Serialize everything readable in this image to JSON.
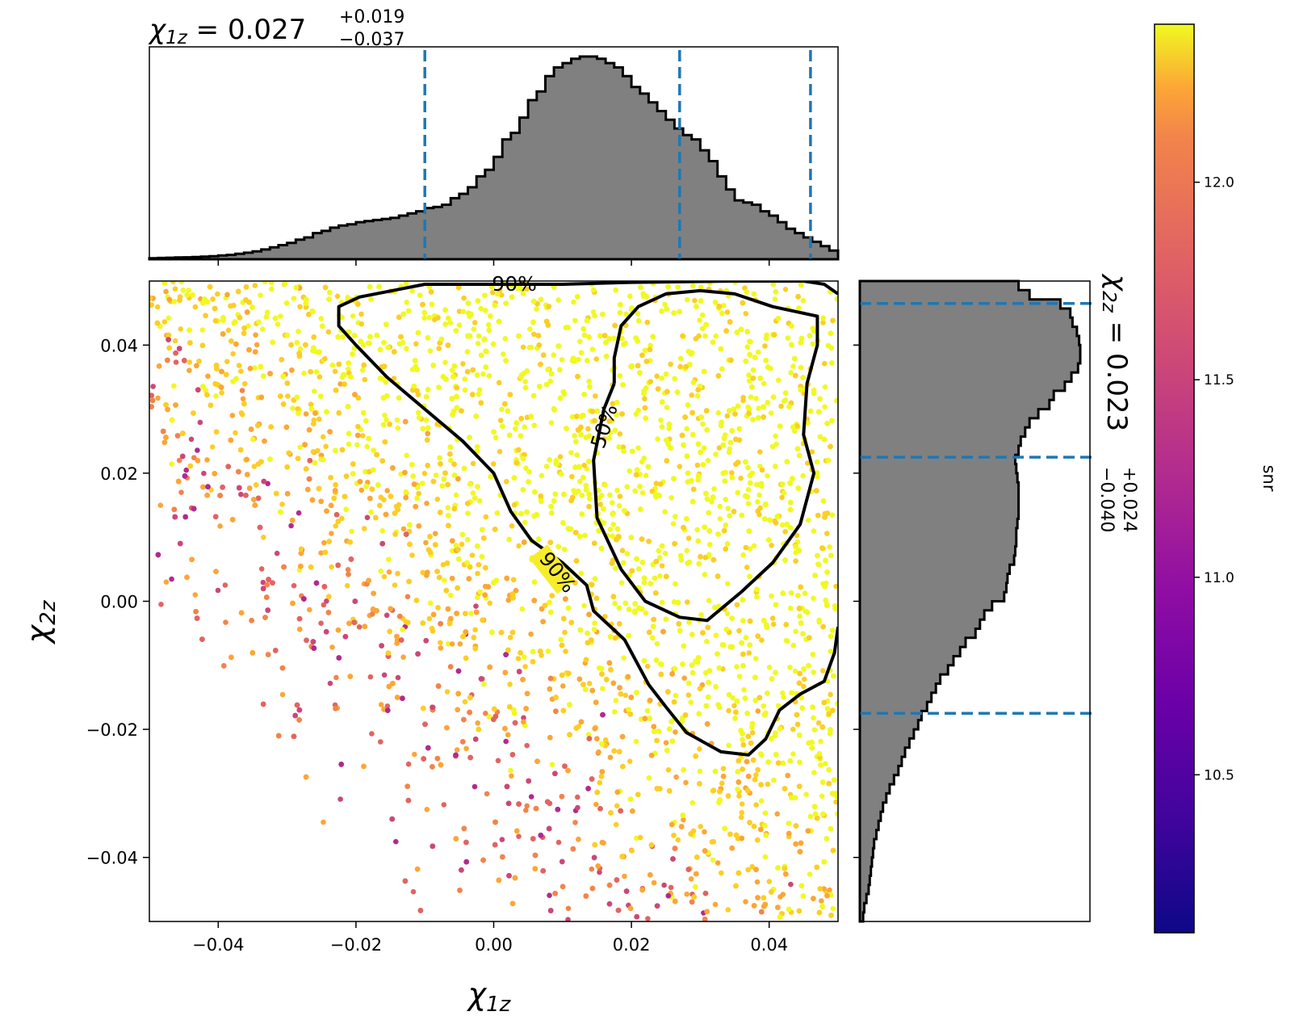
{
  "figure": {
    "title_top": {
      "main": "χ1z = 0.027",
      "sym": "χ",
      "sub": "1z",
      "eq": " = 0.027",
      "plus": "+0.019",
      "minus": "−0.037"
    },
    "title_right": {
      "sym": "χ",
      "sub": "2z",
      "eq": " = 0.023",
      "plus": "+0.024",
      "minus": "−0.040"
    },
    "colorbar_label": "snr",
    "contour_labels": [
      "50%",
      "90%"
    ]
  },
  "chart_data": [
    {
      "type": "scatter",
      "name": "joint",
      "xlabel": "χ1z",
      "ylabel": "χ2z",
      "xlim": [
        -0.05,
        0.05
      ],
      "ylim": [
        -0.05,
        0.05
      ],
      "xticks": [
        "−0.04",
        "−0.02",
        "0.00",
        "0.02",
        "0.04"
      ],
      "yticks": [
        "−0.04",
        "−0.02",
        "0.00",
        "0.02",
        "0.04"
      ],
      "color_by": "snr",
      "colormap": "plasma",
      "clim": [
        10.1,
        12.4
      ],
      "density": "high near x>0.0, y>-0.02; sparse lower-left",
      "contours": [
        {
          "level": "50%",
          "path": [
            [
              0.0175,
              0.034
            ],
            [
              0.0175,
              0.038
            ],
            [
              0.0185,
              0.043
            ],
            [
              0.021,
              0.046
            ],
            [
              0.025,
              0.048
            ],
            [
              0.03,
              0.0485
            ],
            [
              0.035,
              0.048
            ],
            [
              0.0405,
              0.046
            ],
            [
              0.047,
              0.0445
            ],
            [
              0.047,
              0.04
            ],
            [
              0.0455,
              0.034
            ],
            [
              0.045,
              0.026
            ],
            [
              0.0465,
              0.02
            ],
            [
              0.0445,
              0.012
            ],
            [
              0.0405,
              0.006
            ],
            [
              0.036,
              0.0015
            ],
            [
              0.031,
              -0.003
            ],
            [
              0.027,
              -0.0025
            ],
            [
              0.022,
              0.0
            ],
            [
              0.0185,
              0.005
            ],
            [
              0.015,
              0.013
            ],
            [
              0.0145,
              0.022
            ],
            [
              0.016,
              0.03
            ],
            [
              0.0175,
              0.034
            ]
          ]
        },
        {
          "level": "90%",
          "path": [
            [
              0.05,
              0.048
            ],
            [
              0.048,
              0.0495
            ],
            [
              0.045,
              0.05
            ],
            [
              0.035,
              0.05
            ],
            [
              0.02,
              0.0498
            ],
            [
              0.01,
              0.0495
            ],
            [
              -0.0025,
              0.0495
            ],
            [
              -0.01,
              0.0495
            ],
            [
              -0.0195,
              0.0475
            ],
            [
              -0.0225,
              0.046
            ],
            [
              -0.0225,
              0.043
            ],
            [
              -0.02,
              0.04
            ],
            [
              -0.0155,
              0.035
            ],
            [
              -0.01,
              0.03
            ],
            [
              -0.0045,
              0.025
            ],
            [
              0.0,
              0.02
            ],
            [
              0.0025,
              0.014
            ],
            [
              0.0055,
              0.0095
            ],
            [
              0.01,
              0.006
            ],
            [
              0.0135,
              0.0025
            ],
            [
              0.0145,
              -0.0015
            ],
            [
              0.019,
              -0.006
            ],
            [
              0.0225,
              -0.013
            ],
            [
              0.025,
              -0.0165
            ],
            [
              0.028,
              -0.0205
            ],
            [
              0.033,
              -0.0235
            ],
            [
              0.037,
              -0.024
            ],
            [
              0.0395,
              -0.0215
            ],
            [
              0.0415,
              -0.017
            ],
            [
              0.0445,
              -0.0145
            ],
            [
              0.048,
              -0.0125
            ],
            [
              0.0495,
              -0.008
            ],
            [
              0.05,
              -0.004
            ]
          ]
        }
      ]
    },
    {
      "type": "bar",
      "name": "marginal-x",
      "xlim": [
        -0.05,
        0.05
      ],
      "bin_width": 0.002,
      "values": [
        0.005,
        0.006,
        0.007,
        0.008,
        0.009,
        0.01,
        0.012,
        0.014,
        0.017,
        0.02,
        0.025,
        0.03,
        0.036,
        0.045,
        0.055,
        0.065,
        0.075,
        0.09,
        0.1,
        0.12,
        0.13,
        0.145,
        0.155,
        0.16,
        0.17,
        0.175,
        0.18,
        0.185,
        0.19,
        0.2,
        0.21,
        0.22,
        0.235,
        0.24,
        0.25,
        0.28,
        0.3,
        0.33,
        0.38,
        0.41,
        0.47,
        0.55,
        0.58,
        0.65,
        0.73,
        0.77,
        0.84,
        0.88,
        0.9,
        0.92,
        0.93,
        0.93,
        0.92,
        0.9,
        0.88,
        0.84,
        0.79,
        0.76,
        0.72,
        0.68,
        0.64,
        0.6,
        0.57,
        0.55,
        0.5,
        0.45,
        0.38,
        0.32,
        0.27,
        0.26,
        0.25,
        0.22,
        0.2,
        0.17,
        0.14,
        0.12,
        0.1,
        0.08,
        0.06,
        0.04
      ],
      "quantiles": [
        -0.01,
        0.027,
        0.046
      ]
    },
    {
      "type": "bar",
      "name": "marginal-y",
      "ylim": [
        -0.05,
        0.05
      ],
      "bin_width": 0.002,
      "values": [
        0.015,
        0.02,
        0.03,
        0.04,
        0.045,
        0.05,
        0.055,
        0.06,
        0.065,
        0.075,
        0.085,
        0.095,
        0.105,
        0.12,
        0.135,
        0.155,
        0.175,
        0.19,
        0.205,
        0.225,
        0.245,
        0.265,
        0.28,
        0.305,
        0.325,
        0.345,
        0.365,
        0.4,
        0.425,
        0.455,
        0.48,
        0.525,
        0.545,
        0.565,
        0.6,
        0.655,
        0.665,
        0.67,
        0.68,
        0.7,
        0.705,
        0.71,
        0.71,
        0.715,
        0.72,
        0.72,
        0.72,
        0.72,
        0.715,
        0.71,
        0.705,
        0.72,
        0.73,
        0.75,
        0.77,
        0.81,
        0.86,
        0.88,
        0.93,
        0.96,
        0.99,
        1.0,
        1.0,
        0.995,
        0.985,
        0.965,
        0.955,
        0.91,
        0.77,
        0.72
      ]
    }
  ],
  "colorbar": {
    "ticks": [
      "10.5",
      "11.0",
      "11.5",
      "12.0"
    ],
    "tick_values": [
      10.5,
      11.0,
      11.5,
      12.0
    ],
    "range": [
      10.1,
      12.4
    ]
  }
}
